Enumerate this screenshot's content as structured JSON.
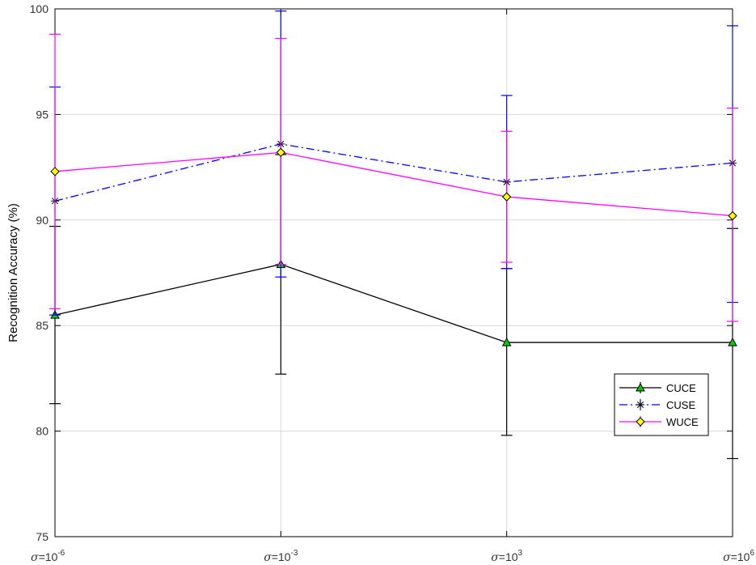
{
  "chart_data": {
    "type": "line",
    "title": "",
    "xlabel": "",
    "ylabel": "Recognition Accuracy (%)",
    "ylim": [
      75,
      100
    ],
    "yticks": [
      75,
      80,
      85,
      90,
      95,
      100
    ],
    "grid": true,
    "legend_position": "lower-right",
    "categories": [
      {
        "symbol": "σ",
        "base": "=10",
        "exp": "-6"
      },
      {
        "symbol": "σ",
        "base": "=10",
        "exp": "-3"
      },
      {
        "symbol": "σ",
        "base": "=10",
        "exp": "3"
      },
      {
        "symbol": "σ",
        "base": "=10",
        "exp": "6"
      }
    ],
    "series": [
      {
        "name": "CUCE",
        "color": "#000000",
        "line_style": "solid",
        "marker": "triangle",
        "marker_color": "#00cc00",
        "values": [
          85.5,
          87.9,
          84.2,
          84.2
        ],
        "error_low": [
          81.3,
          82.7,
          79.8,
          78.7
        ],
        "error_high": [
          89.7,
          93.1,
          87.7,
          89.6
        ]
      },
      {
        "name": "CUSE",
        "color": "#0000ff",
        "line_style": "dash-dot",
        "marker": "star",
        "marker_color": "#0000ff",
        "values": [
          90.9,
          93.6,
          91.8,
          92.7
        ],
        "error_low": [
          85.5,
          87.3,
          87.7,
          86.1
        ],
        "error_high": [
          96.3,
          99.9,
          95.9,
          99.2
        ]
      },
      {
        "name": "WUCE",
        "color": "#ff00ff",
        "line_style": "solid",
        "marker": "diamond",
        "marker_color": "#ffff00",
        "values": [
          92.3,
          93.2,
          91.1,
          90.2
        ],
        "error_low": [
          85.8,
          87.9,
          88.0,
          85.2
        ],
        "error_high": [
          98.8,
          98.6,
          94.2,
          95.3
        ]
      }
    ]
  }
}
